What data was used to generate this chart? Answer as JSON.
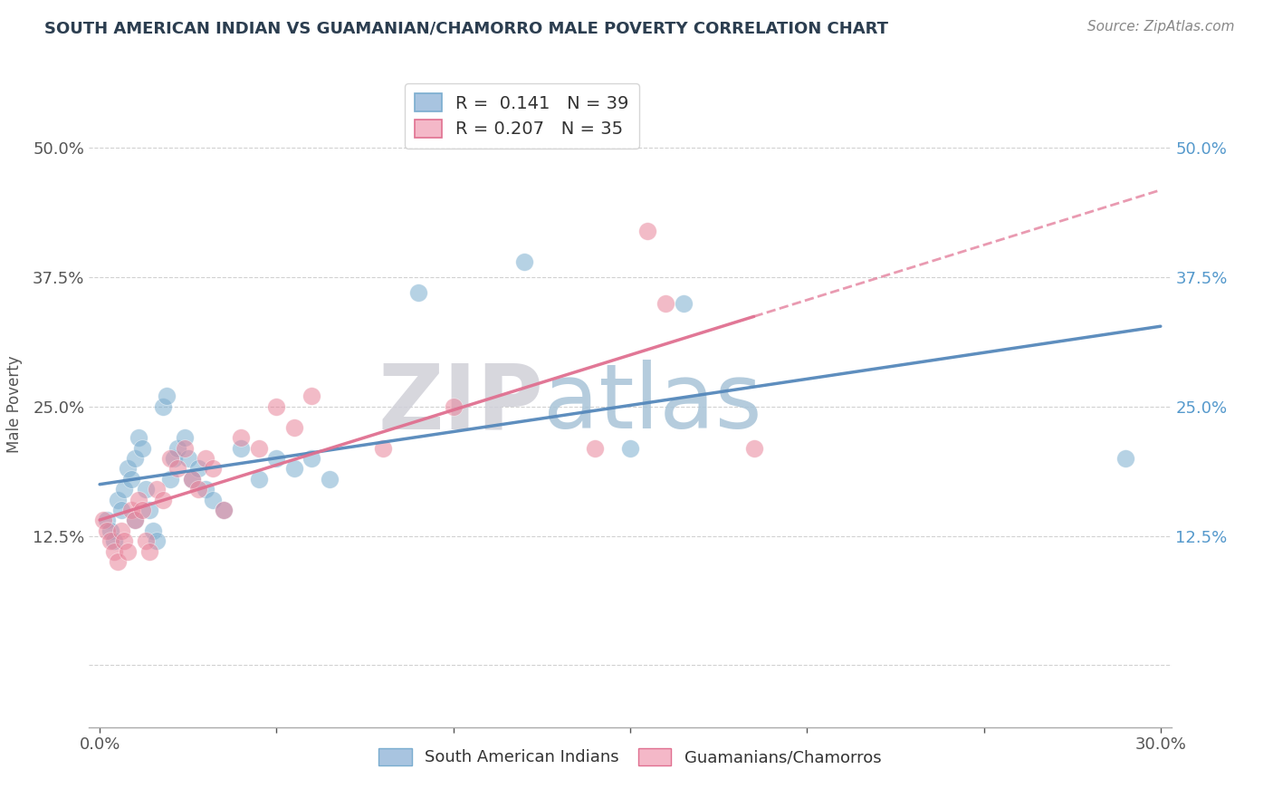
{
  "title": "SOUTH AMERICAN INDIAN VS GUAMANIAN/CHAMORRO MALE POVERTY CORRELATION CHART",
  "source": "Source: ZipAtlas.com",
  "ylabel": "Male Poverty",
  "xlim": [
    -0.003,
    0.303
  ],
  "ylim": [
    -0.06,
    0.565
  ],
  "yticks": [
    0.0,
    0.125,
    0.25,
    0.375,
    0.5
  ],
  "ytick_labels": [
    "",
    "12.5%",
    "25.0%",
    "37.5%",
    "50.0%"
  ],
  "xticks": [
    0.0,
    0.05,
    0.1,
    0.15,
    0.2,
    0.25,
    0.3
  ],
  "xtick_labels": [
    "0.0%",
    "",
    "",
    "",
    "",
    "",
    "30.0%"
  ],
  "legend_entries": [
    {
      "color": "#a8c4e0",
      "border": "#7aadcf",
      "R": "0.141",
      "N": "39"
    },
    {
      "color": "#f4b8c8",
      "border": "#e07090",
      "R": "0.207",
      "N": "35"
    }
  ],
  "series1_name": "South American Indians",
  "series2_name": "Guamanians/Chamorros",
  "series1_color": "#7aadcf",
  "series2_color": "#e8839a",
  "series1_line_color": "#5588bb",
  "series2_line_color": "#e07090",
  "watermark_zip": "ZIP",
  "watermark_atlas": "atlas",
  "watermark_zip_color": "#d0d0d8",
  "watermark_atlas_color": "#a8c4d8",
  "series1_x": [
    0.002,
    0.003,
    0.004,
    0.005,
    0.006,
    0.007,
    0.008,
    0.009,
    0.01,
    0.01,
    0.011,
    0.012,
    0.013,
    0.014,
    0.015,
    0.016,
    0.018,
    0.019,
    0.02,
    0.021,
    0.022,
    0.024,
    0.025,
    0.026,
    0.028,
    0.03,
    0.032,
    0.035,
    0.04,
    0.045,
    0.05,
    0.055,
    0.06,
    0.065,
    0.09,
    0.12,
    0.15,
    0.165,
    0.29
  ],
  "series1_y": [
    0.14,
    0.13,
    0.12,
    0.16,
    0.15,
    0.17,
    0.19,
    0.18,
    0.14,
    0.2,
    0.22,
    0.21,
    0.17,
    0.15,
    0.13,
    0.12,
    0.25,
    0.26,
    0.18,
    0.2,
    0.21,
    0.22,
    0.2,
    0.18,
    0.19,
    0.17,
    0.16,
    0.15,
    0.21,
    0.18,
    0.2,
    0.19,
    0.2,
    0.18,
    0.36,
    0.39,
    0.21,
    0.35,
    0.2
  ],
  "series1_sizes": [
    200,
    100,
    100,
    100,
    100,
    100,
    100,
    100,
    100,
    100,
    100,
    100,
    100,
    100,
    100,
    100,
    100,
    100,
    100,
    100,
    100,
    100,
    100,
    100,
    100,
    100,
    100,
    100,
    100,
    100,
    100,
    100,
    100,
    100,
    100,
    100,
    100,
    100,
    100
  ],
  "series2_x": [
    0.001,
    0.002,
    0.003,
    0.004,
    0.005,
    0.006,
    0.007,
    0.008,
    0.009,
    0.01,
    0.011,
    0.012,
    0.013,
    0.014,
    0.016,
    0.018,
    0.02,
    0.022,
    0.024,
    0.026,
    0.028,
    0.03,
    0.032,
    0.035,
    0.04,
    0.045,
    0.05,
    0.055,
    0.06,
    0.08,
    0.1,
    0.14,
    0.155,
    0.16,
    0.185
  ],
  "series2_y": [
    0.14,
    0.13,
    0.12,
    0.11,
    0.1,
    0.13,
    0.12,
    0.11,
    0.15,
    0.14,
    0.16,
    0.15,
    0.12,
    0.11,
    0.17,
    0.16,
    0.2,
    0.19,
    0.21,
    0.18,
    0.17,
    0.2,
    0.19,
    0.15,
    0.22,
    0.21,
    0.25,
    0.23,
    0.26,
    0.21,
    0.25,
    0.21,
    0.42,
    0.35,
    0.21
  ],
  "background_color": "#ffffff",
  "grid_color": "#cccccc"
}
